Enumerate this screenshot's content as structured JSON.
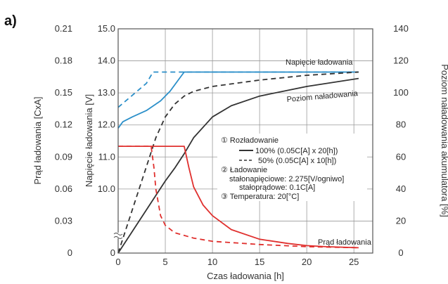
{
  "panel_label": "a)",
  "colors": {
    "grid": "#9a9a9a",
    "axis": "#555555",
    "voltage": "#2b8fc9",
    "current": "#e0302e",
    "charge": "#333333",
    "ann_line": "#8a8a8a"
  },
  "chart_data": {
    "type": "line",
    "title": "",
    "xlabel": "Czas ładowania [h]",
    "x_ticks": [
      "0",
      "5",
      "10",
      "15",
      "20",
      "25"
    ],
    "xlim": [
      0,
      27
    ],
    "grid": true,
    "y_axes": {
      "current": {
        "label": "Prąd ładowania [CxA]",
        "ylim": [
          0,
          0.21
        ],
        "ticks": [
          "0",
          "0.03",
          "0.06",
          "0.09",
          "0.12",
          "0.15",
          "0.18",
          "0.21"
        ]
      },
      "voltage": {
        "label": "Napięcie ładowania [V]",
        "ticks": [
          "0",
          "10.0",
          "11.0",
          "12.0",
          "13.0",
          "14.0",
          "15.0"
        ],
        "break": true
      },
      "charge": {
        "label": "Poziom naładowania akumulatora [%]",
        "ylim": [
          0,
          140
        ],
        "ticks": [
          "0",
          "20",
          "40",
          "60",
          "80",
          "100",
          "120",
          "140"
        ]
      }
    },
    "series": [
      {
        "name": "Napięcie ładowania 100%",
        "axis": "charge",
        "color": "blue",
        "style": "solid",
        "x": [
          0,
          0.5,
          1.5,
          3,
          4.5,
          5.5,
          6.5,
          7,
          10,
          15,
          20,
          25.5
        ],
        "y": [
          78,
          82,
          85,
          89,
          95,
          101,
          109,
          113,
          113,
          113,
          113,
          113
        ]
      },
      {
        "name": "Napięcie ładowania 50%",
        "axis": "charge",
        "color": "blue",
        "style": "dashed",
        "x": [
          0,
          1,
          2,
          3,
          3.7,
          5,
          7,
          10,
          15,
          20,
          25.5
        ],
        "y": [
          91,
          96,
          101,
          106,
          113,
          113,
          113,
          113,
          113,
          113,
          113
        ]
      },
      {
        "name": "Poziom naładowania 100%",
        "axis": "charge",
        "color": "black",
        "style": "solid",
        "x": [
          0,
          1,
          2,
          3,
          4,
          5,
          6,
          7,
          8,
          10,
          12,
          15,
          20,
          25.5
        ],
        "y": [
          0,
          9,
          18,
          27,
          36,
          45,
          53,
          62,
          72,
          85,
          92,
          98,
          104,
          109
        ]
      },
      {
        "name": "Poziom naładowania 50%",
        "axis": "charge",
        "color": "black",
        "style": "dashed",
        "x": [
          0,
          1,
          2,
          3,
          4,
          5,
          6,
          7,
          8,
          10,
          15,
          20,
          25.5
        ],
        "y": [
          0,
          18,
          36,
          54,
          72,
          85,
          93,
          98,
          101,
          104,
          108,
          111,
          113
        ]
      },
      {
        "name": "Prąd ładowania 100%",
        "axis": "current",
        "color": "red",
        "style": "solid",
        "x": [
          0,
          5,
          6.5,
          7,
          7.5,
          8,
          9,
          10,
          12,
          15,
          18,
          20,
          22,
          25.5
        ],
        "y": [
          0.1,
          0.1,
          0.1,
          0.1,
          0.08,
          0.062,
          0.045,
          0.035,
          0.022,
          0.013,
          0.009,
          0.007,
          0.006,
          0.005
        ]
      },
      {
        "name": "Prąd ładowania 50%",
        "axis": "current",
        "color": "red",
        "style": "dashed",
        "x": [
          0,
          2,
          3.5,
          3.8,
          4,
          4.5,
          5,
          6,
          8,
          10,
          15,
          20,
          25.5
        ],
        "y": [
          0.1,
          0.1,
          0.1,
          0.08,
          0.06,
          0.035,
          0.026,
          0.019,
          0.014,
          0.011,
          0.008,
          0.006,
          0.005
        ]
      }
    ],
    "annotations": [
      {
        "id": "voltage",
        "text": "Napięcie ładowania"
      },
      {
        "id": "charge",
        "text": "Poziom naładowania"
      },
      {
        "id": "current",
        "text": "Prąd ładowania"
      }
    ],
    "legend": {
      "discharge_title": "① Rozładowanie",
      "row_100": "100% (0.05C[A] x 20[h])",
      "row_50": "50% (0.05C[A] x 10[h])",
      "charge_title": "② Ładowanie",
      "cv_line": "stałonapięciowe: 2.275[V/ogniwo]",
      "cc_line": "stałoprądowe: 0.1C[A]",
      "temp_line": "③ Temperatura: 20[°C]"
    }
  }
}
